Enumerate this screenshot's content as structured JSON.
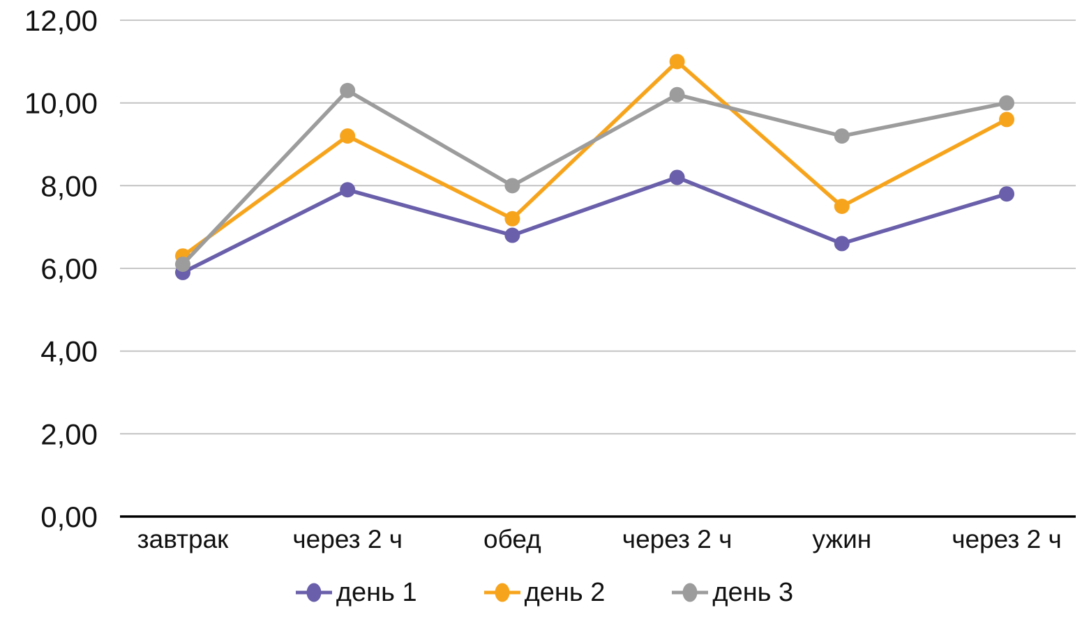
{
  "chart_data": {
    "type": "line",
    "title": "",
    "xlabel": "",
    "ylabel": "",
    "categories": [
      "завтрак",
      "через 2 ч",
      "обед",
      "через 2 ч",
      "ужин",
      "через 2 ч"
    ],
    "series": [
      {
        "name": "день 1",
        "color": "#695FAA",
        "values": [
          5.9,
          7.9,
          6.8,
          8.2,
          6.6,
          7.8
        ]
      },
      {
        "name": "день 2",
        "color": "#F7A41D",
        "values": [
          6.3,
          9.2,
          7.2,
          11.0,
          7.5,
          9.6
        ]
      },
      {
        "name": "день 3",
        "color": "#9C9C9C",
        "values": [
          6.1,
          10.3,
          8.0,
          10.2,
          9.2,
          10.0
        ]
      }
    ],
    "ylim": [
      0,
      12
    ],
    "y_tick_step": 2,
    "y_tick_labels": [
      "0,00",
      "2,00",
      "4,00",
      "6,00",
      "8,00",
      "10,00",
      "12,00"
    ],
    "grid": true,
    "legend_position": "bottom",
    "marker_style": "circle",
    "colors": {
      "gridline": "#BFBFBF",
      "axis_line": "#000000",
      "text": "#111111",
      "background": "#FFFFFF"
    }
  }
}
